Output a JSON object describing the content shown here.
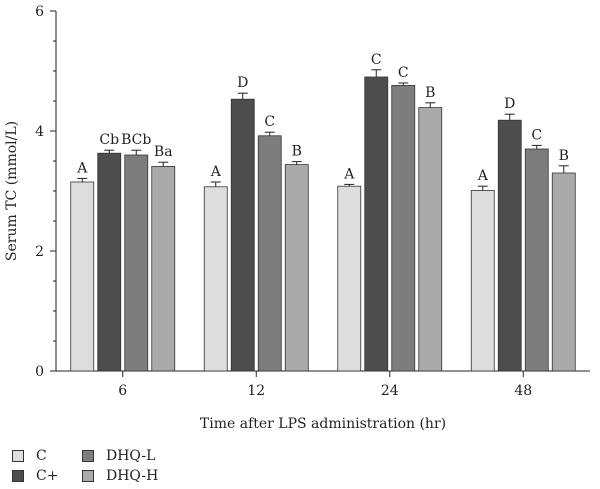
{
  "chart_data": {
    "type": "bar",
    "xlabel": "Time after LPS administration (hr)",
    "ylabel": "Serum TC (mmol/L)",
    "ylim": [
      0,
      6
    ],
    "yticks": [
      "0",
      "2",
      "4",
      "6"
    ],
    "categories": [
      "6",
      "12",
      "24",
      "48"
    ],
    "series": [
      {
        "name": "C",
        "color": "#dddddd",
        "values": [
          3.15,
          3.07,
          3.08,
          3.01
        ],
        "errors": [
          0.06,
          0.08,
          0.03,
          0.07
        ],
        "labels": [
          "A",
          "A",
          "A",
          "A"
        ]
      },
      {
        "name": "C+",
        "color": "#4d4d4d",
        "values": [
          3.63,
          4.53,
          4.9,
          4.18
        ],
        "errors": [
          0.05,
          0.1,
          0.12,
          0.1
        ],
        "labels": [
          "Cb",
          "D",
          "C",
          "D"
        ]
      },
      {
        "name": "DHQ-L",
        "color": "#7d7d7d",
        "values": [
          3.6,
          3.92,
          4.76,
          3.7
        ],
        "errors": [
          0.08,
          0.06,
          0.04,
          0.06
        ],
        "labels": [
          "BCb",
          "C",
          "C",
          "C"
        ]
      },
      {
        "name": "DHQ-H",
        "color": "#aaaaaa",
        "values": [
          3.41,
          3.44,
          4.39,
          3.3
        ],
        "errors": [
          0.07,
          0.05,
          0.08,
          0.12
        ],
        "labels": [
          "Ba",
          "B",
          "B",
          "B"
        ]
      }
    ],
    "legend_placement": "bottom-left"
  }
}
